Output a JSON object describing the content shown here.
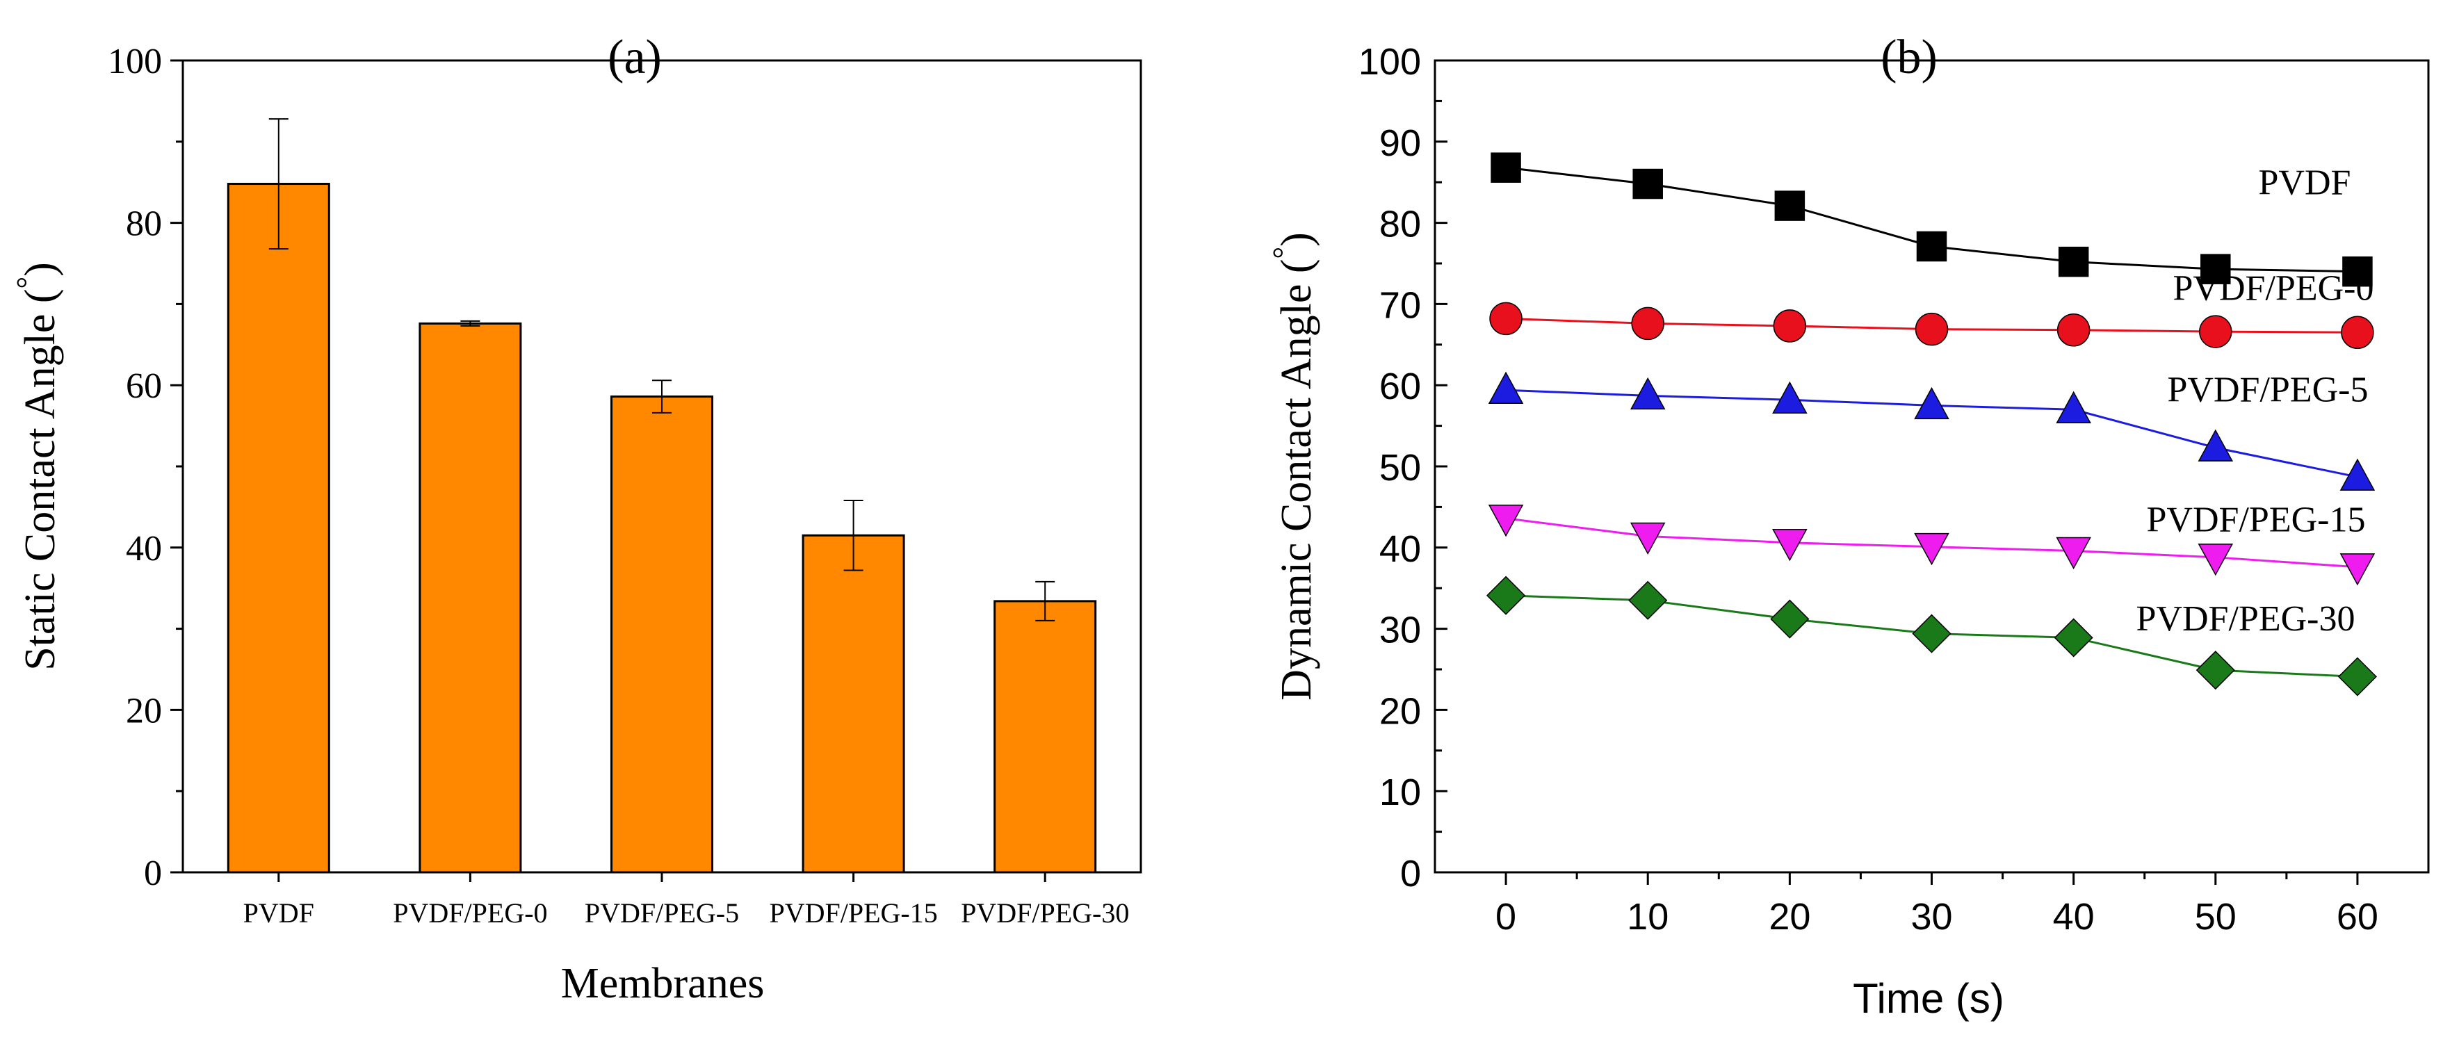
{
  "chart_data": [
    {
      "type": "bar",
      "panel_label": "(a)",
      "title": "",
      "xlabel": "Membranes",
      "ylabel": "Static Contact Angle (",
      "ylabel_unit": "°",
      "ylabel_close": ")",
      "ylim": [
        0,
        100
      ],
      "yticks": [
        "0",
        "20",
        "40",
        "60",
        "80",
        "100"
      ],
      "categories": [
        "PVDF",
        "PVDF/PEG-0",
        "PVDF/PEG-5",
        "PVDF/PEG-15",
        "PVDF/PEG-30"
      ],
      "values": [
        84.8,
        67.6,
        58.6,
        41.5,
        33.4
      ],
      "errors": [
        8.0,
        0.3,
        2.0,
        4.3,
        2.4
      ],
      "bar_color": "#ff8800",
      "grid": false
    },
    {
      "type": "line",
      "panel_label": "(b)",
      "title": "",
      "xlabel": "Time (s)",
      "ylabel": "Dynamic Contact Angle (",
      "ylabel_unit": "°",
      "ylabel_close": ")",
      "xlim": [
        -5,
        65
      ],
      "ylim": [
        0,
        100
      ],
      "xticks": [
        "0",
        "10",
        "20",
        "30",
        "40",
        "50",
        "60"
      ],
      "yticks": [
        "0",
        "10",
        "20",
        "30",
        "40",
        "50",
        "60",
        "70",
        "80",
        "90",
        "100"
      ],
      "x": [
        0,
        10,
        20,
        30,
        40,
        50,
        60
      ],
      "series": [
        {
          "name": "PVDF",
          "marker": "square",
          "color": "#000000",
          "values": [
            86.8,
            84.8,
            82.1,
            77.1,
            75.2,
            74.3,
            74.0
          ]
        },
        {
          "name": "PVDF/PEG-0",
          "marker": "circle",
          "color": "#e8101c",
          "values": [
            68.2,
            67.6,
            67.3,
            66.9,
            66.8,
            66.6,
            66.5
          ]
        },
        {
          "name": "PVDF/PEG-5",
          "marker": "triangle-up",
          "color": "#1c1ce0",
          "values": [
            59.4,
            58.7,
            58.2,
            57.5,
            57.0,
            52.3,
            48.7
          ]
        },
        {
          "name": "PVDF/PEG-15",
          "marker": "triangle-down",
          "color": "#ee1cee",
          "values": [
            43.6,
            41.4,
            40.6,
            40.1,
            39.6,
            38.8,
            37.6
          ]
        },
        {
          "name": "PVDF/PEG-30",
          "marker": "diamond",
          "color": "#1a7a1a",
          "values": [
            34.1,
            33.5,
            31.2,
            29.4,
            28.9,
            24.9,
            24.1
          ]
        }
      ],
      "grid": false
    }
  ]
}
